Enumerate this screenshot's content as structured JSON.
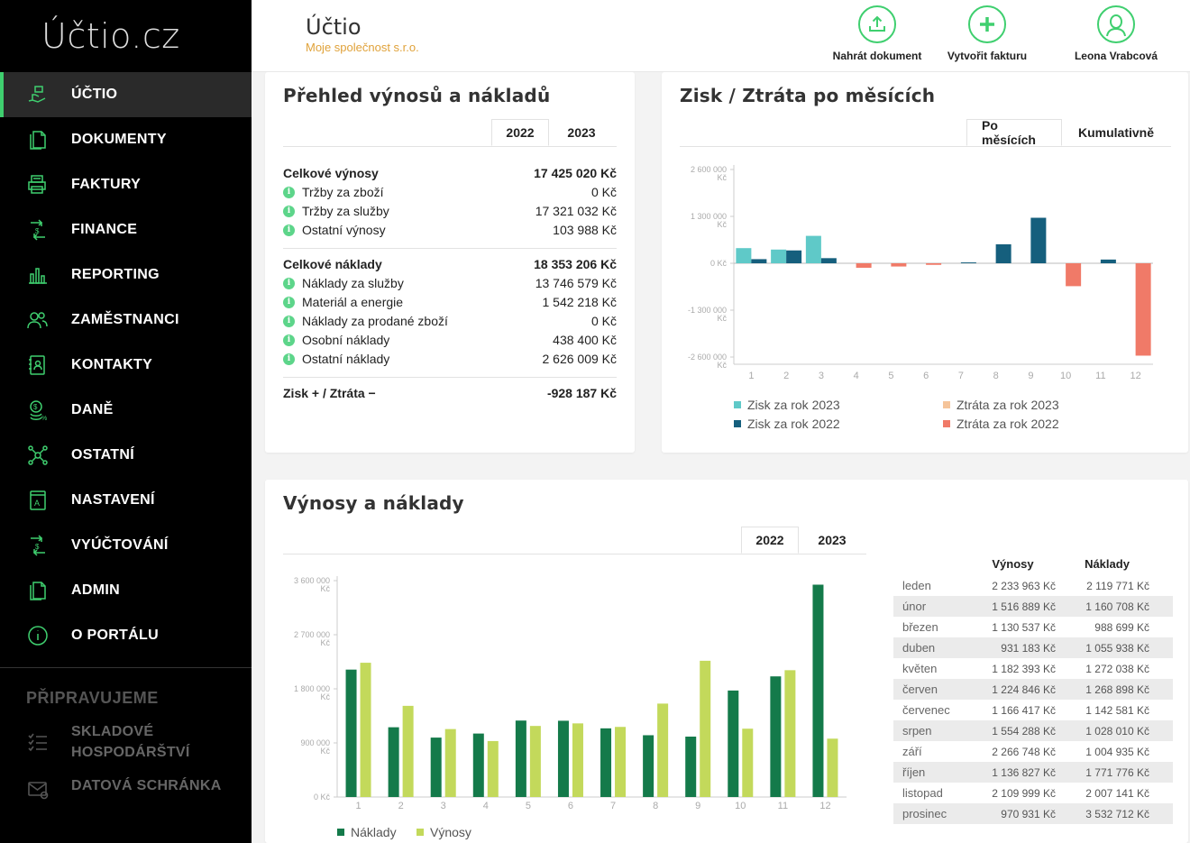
{
  "sidebar": {
    "logo": "Účtio.cz",
    "items": [
      {
        "label": "ÚČTIO",
        "icon": "hand-money-icon",
        "active": true
      },
      {
        "label": "DOKUMENTY",
        "icon": "documents-icon"
      },
      {
        "label": "FAKTURY",
        "icon": "invoice-printer-icon"
      },
      {
        "label": "FINANCE",
        "icon": "finance-transfer-icon"
      },
      {
        "label": "REPORTING",
        "icon": "bar-chart-icon"
      },
      {
        "label": "ZAMĚSTNANCI",
        "icon": "people-icon"
      },
      {
        "label": "KONTAKTY",
        "icon": "contacts-book-icon"
      },
      {
        "label": "DANĚ",
        "icon": "tax-coins-icon"
      },
      {
        "label": "OSTATNÍ",
        "icon": "network-nodes-icon"
      },
      {
        "label": "NASTAVENÍ",
        "icon": "settings-book-icon"
      },
      {
        "label": "VYÚČTOVÁNÍ",
        "icon": "billing-transfer-icon"
      },
      {
        "label": "ADMIN",
        "icon": "admin-documents-icon"
      },
      {
        "label": "O PORTÁLU",
        "icon": "info-circle-icon"
      }
    ],
    "coming_title": "PŘIPRAVUJEME",
    "coming": [
      {
        "label1": "SKLADOVÉ",
        "label2": "HOSPODÁRŠTVÍ",
        "icon": "checklist-icon"
      },
      {
        "label1": "DATOVÁ SCHRÁNKA",
        "label2": "",
        "icon": "mailbox-icon"
      }
    ]
  },
  "header": {
    "app_name": "Účtio",
    "company": "Moje společnost s.r.o.",
    "actions": {
      "upload": "Nahrát dokument",
      "create_invoice": "Vytvořit fakturu",
      "user": "Leona Vrabcová"
    }
  },
  "overview": {
    "title": "Přehled výnosů a nákladů",
    "tabs": [
      "2022",
      "2023"
    ],
    "active_tab": "2022",
    "revenue_total_label": "Celkové výnosy",
    "revenue_total": "17 425 020 Kč",
    "revenue_rows": [
      {
        "label": "Tržby za zboží",
        "value": "0 Kč"
      },
      {
        "label": "Tržby za služby",
        "value": "17 321 032 Kč"
      },
      {
        "label": "Ostatní výnosy",
        "value": "103 988 Kč"
      }
    ],
    "cost_total_label": "Celkové náklady",
    "cost_total": "18 353 206 Kč",
    "cost_rows": [
      {
        "label": "Náklady za služby",
        "value": "13 746 579 Kč"
      },
      {
        "label": "Materiál a energie",
        "value": "1 542 218 Kč"
      },
      {
        "label": "Náklady za prodané zboží",
        "value": "0 Kč"
      },
      {
        "label": "Osobní náklady",
        "value": "438 400 Kč"
      },
      {
        "label": "Ostatní náklady",
        "value": "2 626 009 Kč"
      }
    ],
    "result_label": "Zisk + / Ztráta −",
    "result_value": "-928 187 Kč"
  },
  "profit": {
    "title": "Zisk / Ztráta po měsících",
    "tabs": [
      "Po měsících",
      "Kumulativně"
    ],
    "active_tab": "Po měsících",
    "legend": {
      "zisk2023": "Zisk za rok 2023",
      "zisk2022": "Zisk za rok 2022",
      "ztrata2023": "Ztráta za rok 2023",
      "ztrata2022": "Ztráta za rok 2022"
    },
    "colors": {
      "zisk2023": "#5fc9c8",
      "zisk2022": "#155f7d",
      "ztrata2023": "#f5c49a",
      "ztrata2022": "#f07a68"
    }
  },
  "revcost": {
    "title": "Výnosy a náklady",
    "tabs": [
      "2022",
      "2023"
    ],
    "active_tab": "2022",
    "legend": {
      "naklady": "Náklady",
      "vynosy": "Výnosy"
    },
    "colors": {
      "naklady": "#147a4a",
      "vynosy": "#c3d95b"
    },
    "table": {
      "col_vynosy": "Výnosy",
      "col_naklady": "Náklady",
      "rows": [
        {
          "month": "leden",
          "vynosy": "2 233 963 Kč",
          "naklady": "2 119 771 Kč"
        },
        {
          "month": "únor",
          "vynosy": "1 516 889 Kč",
          "naklady": "1 160 708 Kč"
        },
        {
          "month": "březen",
          "vynosy": "1 130 537 Kč",
          "naklady": "988 699 Kč"
        },
        {
          "month": "duben",
          "vynosy": "931 183 Kč",
          "naklady": "1 055 938 Kč"
        },
        {
          "month": "květen",
          "vynosy": "1 182 393 Kč",
          "naklady": "1 272 038 Kč"
        },
        {
          "month": "červen",
          "vynosy": "1 224 846 Kč",
          "naklady": "1 268 898 Kč"
        },
        {
          "month": "červenec",
          "vynosy": "1 166 417 Kč",
          "naklady": "1 142 581 Kč"
        },
        {
          "month": "srpen",
          "vynosy": "1 554 288 Kč",
          "naklady": "1 028 010 Kč"
        },
        {
          "month": "září",
          "vynosy": "2 266 748 Kč",
          "naklady": "1 004 935 Kč"
        },
        {
          "month": "říjen",
          "vynosy": "1 136 827 Kč",
          "naklady": "1 771 776 Kč"
        },
        {
          "month": "listopad",
          "vynosy": "2 109 999 Kč",
          "naklady": "2 007 141 Kč"
        },
        {
          "month": "prosinec",
          "vynosy": "970 931 Kč",
          "naklady": "3 532 712 Kč"
        }
      ]
    }
  },
  "chart_data": [
    {
      "type": "bar",
      "title": "Zisk / Ztráta po měsících",
      "categories": [
        "1",
        "2",
        "3",
        "4",
        "5",
        "6",
        "7",
        "8",
        "9",
        "10",
        "11",
        "12"
      ],
      "yticks": [
        "2 600 000 Kč",
        "1 300 000 Kč",
        "0 Kč",
        "-1 300 000 Kč",
        "-2 600 000 Kč"
      ],
      "ylim": [
        -2600000,
        2600000
      ],
      "series": [
        {
          "name": "Zisk za rok 2023",
          "values": [
            420000,
            380000,
            760000,
            0,
            0,
            0,
            0,
            0,
            0,
            0,
            0,
            0
          ]
        },
        {
          "name": "Zisk za rok 2022",
          "values": [
            114192,
            356181,
            141838,
            0,
            0,
            0,
            23836,
            526278,
            1261813,
            0,
            102858,
            0
          ]
        },
        {
          "name": "Ztráta za rok 2023",
          "values": [
            0,
            0,
            0,
            0,
            0,
            0,
            0,
            0,
            0,
            0,
            0,
            0
          ]
        },
        {
          "name": "Ztráta za rok 2022",
          "values": [
            0,
            0,
            0,
            -124755,
            -89645,
            -44052,
            0,
            0,
            0,
            -634949,
            0,
            -2561781
          ]
        }
      ]
    },
    {
      "type": "bar",
      "title": "Výnosy a náklady",
      "categories": [
        "1",
        "2",
        "3",
        "4",
        "5",
        "6",
        "7",
        "8",
        "9",
        "10",
        "11",
        "12"
      ],
      "yticks": [
        "3 600 000 Kč",
        "2 700 000 Kč",
        "1 800 000 Kč",
        "900 000 Kč",
        "0 Kč"
      ],
      "ylim": [
        0,
        3600000
      ],
      "series": [
        {
          "name": "Náklady",
          "values": [
            2119771,
            1160708,
            988699,
            1055938,
            1272038,
            1268898,
            1142581,
            1028010,
            1004935,
            1771776,
            2007141,
            3532712
          ]
        },
        {
          "name": "Výnosy",
          "values": [
            2233963,
            1516889,
            1130537,
            931183,
            1182393,
            1224846,
            1166417,
            1554288,
            2266748,
            1136827,
            2109999,
            970931
          ]
        }
      ]
    }
  ]
}
